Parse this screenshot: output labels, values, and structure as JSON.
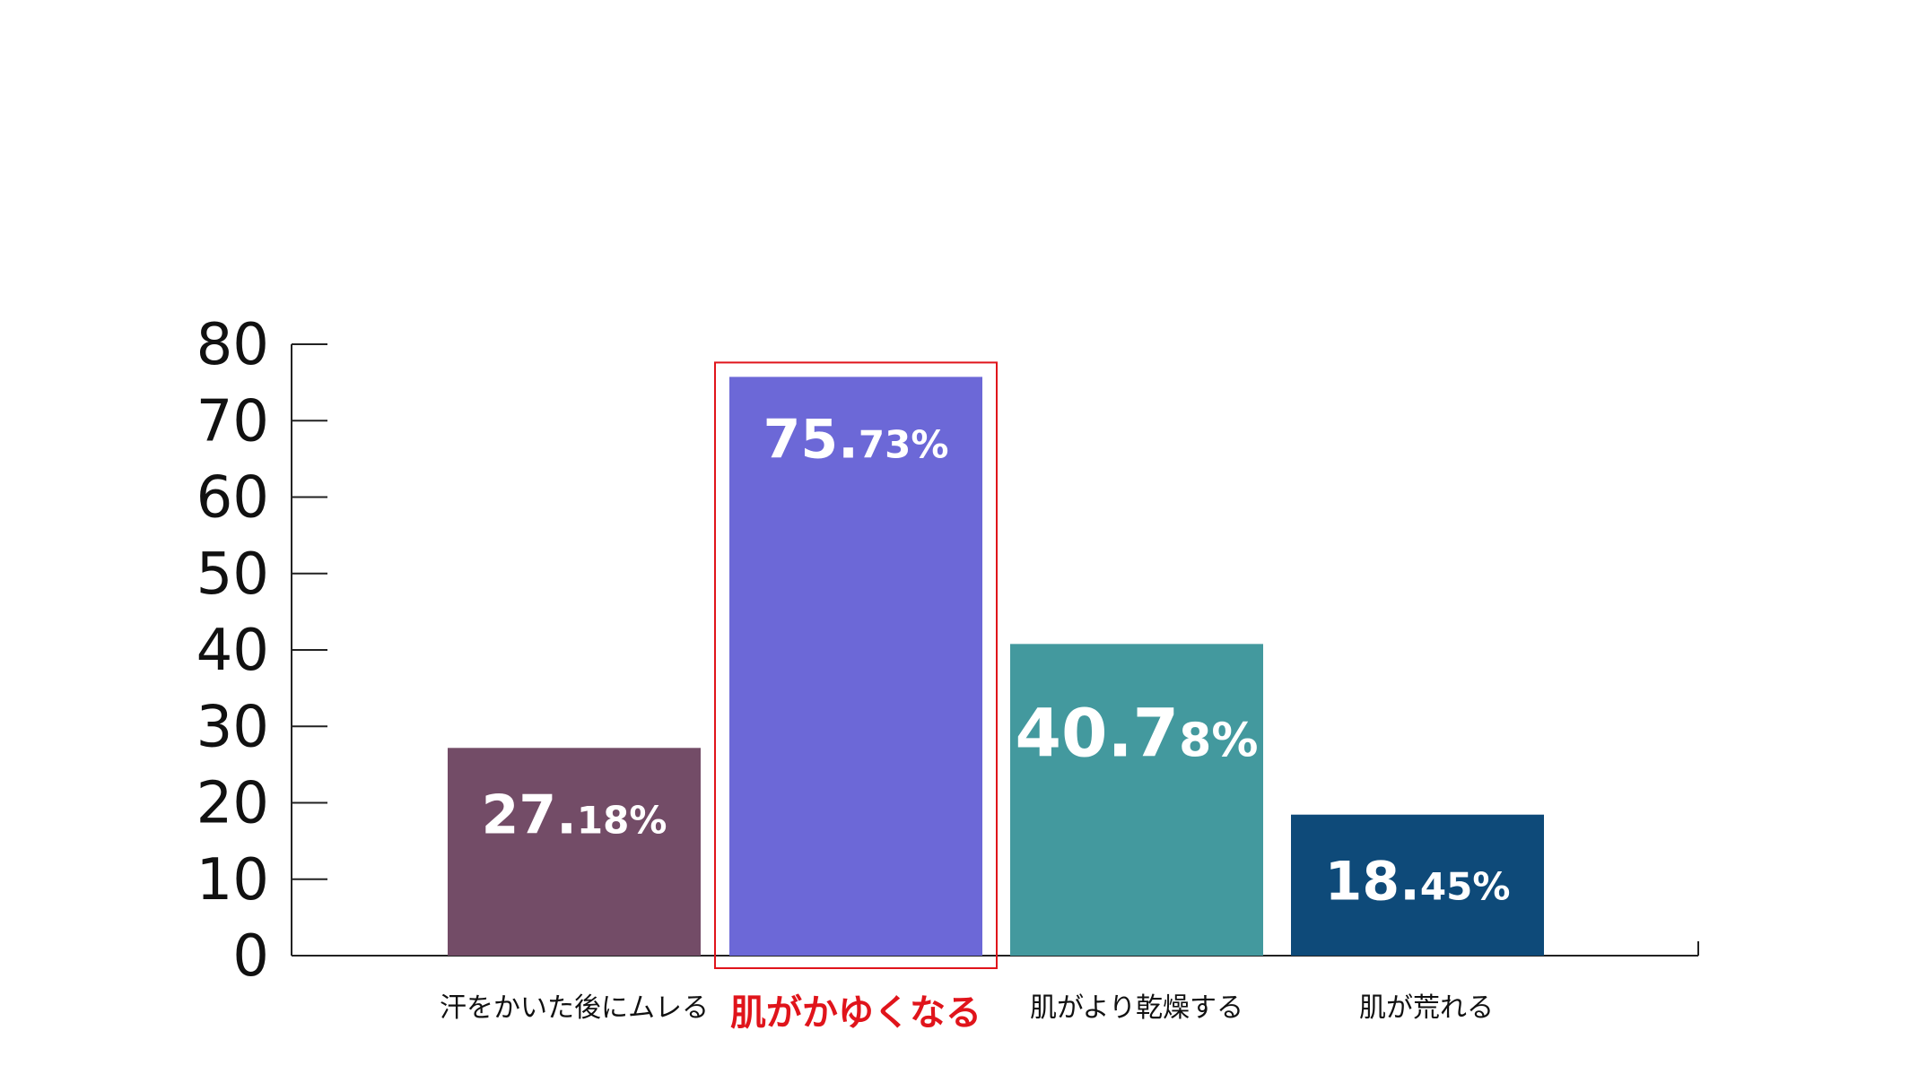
{
  "chart_data": {
    "type": "bar",
    "categories": [
      "汗をかいた後にムレる",
      "肌がかゆくなる",
      "肌がより乾燥する",
      "肌が荒れる"
    ],
    "values": [
      27.18,
      75.73,
      40.78,
      18.45
    ],
    "value_labels": [
      {
        "main": "27.",
        "small": "18%"
      },
      {
        "main": "75.",
        "small": "73%"
      },
      {
        "main": "40.7",
        "small": "8%"
      },
      {
        "main": "18.",
        "small": "45%"
      }
    ],
    "bar_colors": [
      "#734c67",
      "#6c68d7",
      "#43999e",
      "#0e4a79"
    ],
    "highlight_index": 1,
    "highlight_color": "#e0141b",
    "yticks": [
      "0",
      "10",
      "20",
      "30",
      "40",
      "50",
      "60",
      "70",
      "80"
    ],
    "ylim": [
      0,
      80
    ],
    "title": "",
    "xlabel": "",
    "ylabel": "",
    "grid": false,
    "legend": "none"
  }
}
